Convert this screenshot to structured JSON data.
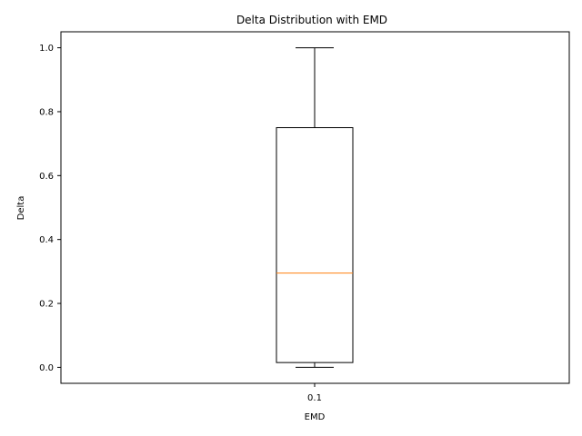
{
  "chart_data": {
    "type": "boxplot",
    "title": "Delta Distribution with EMD",
    "xlabel": "EMD",
    "ylabel": "Delta",
    "ylim": [
      -0.05,
      1.05
    ],
    "categories": [
      "0.1"
    ],
    "boxes": [
      {
        "category": "0.1",
        "whisker_low": 0.0,
        "q1": 0.015,
        "median": 0.295,
        "q3": 0.75,
        "whisker_high": 1.0
      }
    ],
    "y_ticks": [
      {
        "value": 0.0,
        "label": "0.0"
      },
      {
        "value": 0.2,
        "label": "0.2"
      },
      {
        "value": 0.4,
        "label": "0.4"
      },
      {
        "value": 0.6,
        "label": "0.6"
      },
      {
        "value": 0.8,
        "label": "0.8"
      },
      {
        "value": 1.0,
        "label": "1.0"
      }
    ],
    "grid": false,
    "colors": {
      "box": "#000000",
      "median": "#ff7f0e"
    }
  }
}
